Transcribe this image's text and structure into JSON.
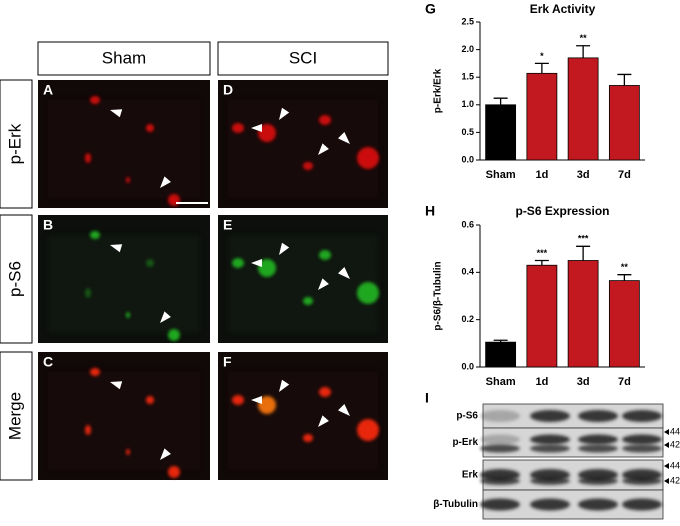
{
  "figure": {
    "columns": [
      "Sham",
      "SCI"
    ],
    "rows": [
      "p-Erk",
      "p-S6",
      "Merge"
    ],
    "panel_letters": [
      [
        "A",
        "D"
      ],
      [
        "B",
        "E"
      ],
      [
        "C",
        "F"
      ]
    ]
  },
  "chart_data": [
    {
      "type": "bar",
      "panel_label": "G",
      "title": "Erk Activity",
      "y_label": "p-Erk/Erk",
      "categories": [
        "Sham",
        "1d",
        "3d",
        "7d"
      ],
      "values": [
        1.0,
        1.57,
        1.85,
        1.35
      ],
      "errors": [
        0.12,
        0.18,
        0.22,
        0.2
      ],
      "colors": [
        "#000000",
        "#c1191f",
        "#c1191f",
        "#c1191f"
      ],
      "annotations": [
        null,
        "*",
        "**",
        null
      ],
      "ylim": [
        0,
        2.5
      ],
      "yticks": [
        {
          "value": 0,
          "label": "0.0"
        },
        0.5,
        {
          "value": 1,
          "label": "1.0"
        },
        1.5,
        {
          "value": 2,
          "label": "2.0"
        },
        2.5
      ]
    },
    {
      "type": "bar",
      "panel_label": "H",
      "title": "p-S6 Expression",
      "y_label": "p-S6/β-Tubulin",
      "categories": [
        "Sham",
        "1d",
        "3d",
        "7d"
      ],
      "values": [
        0.105,
        0.43,
        0.45,
        0.365
      ],
      "errors": [
        0.008,
        0.02,
        0.06,
        0.025
      ],
      "colors": [
        "#000000",
        "#c1191f",
        "#c1191f",
        "#c1191f"
      ],
      "annotations": [
        null,
        "***",
        "***",
        "**"
      ],
      "ylim": [
        0,
        0.6
      ],
      "yticks": [
        {
          "value": 0,
          "label": "0.0"
        },
        0.2,
        0.4,
        0.6
      ]
    }
  ],
  "blot": {
    "panel_label": "I",
    "rows": [
      "p-S6",
      "p-Erk",
      "Erk",
      "β-Tubulin"
    ],
    "markers": [
      "44",
      "42",
      "44",
      "42"
    ]
  }
}
